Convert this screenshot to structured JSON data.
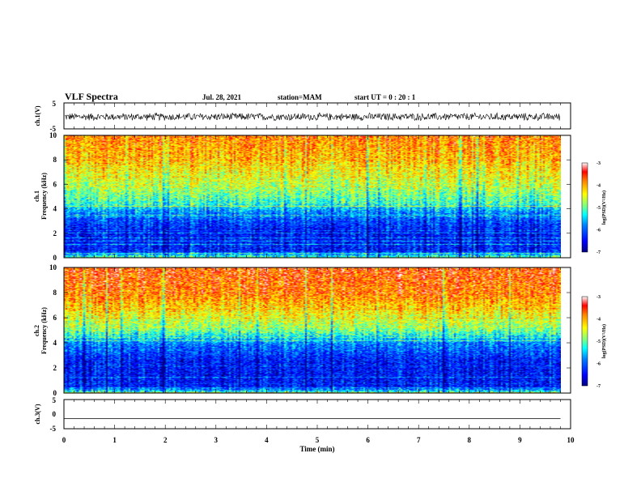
{
  "header": {
    "title": "VLF Spectra",
    "date": "Jul. 28, 2021",
    "station": "station=MAM",
    "start": "start UT =  0 : 20 : 1"
  },
  "chart_data": [
    {
      "type": "line",
      "panel": "ch1-waveform",
      "ylabel": "ch.1(V)",
      "ylim": [
        -5,
        5
      ],
      "yticks": [
        "5",
        "-5"
      ],
      "xlim": [
        0,
        10
      ],
      "description_values": "noise waveform between about -1.5 V and 1.5 V from 0 to 9.8 min"
    },
    {
      "type": "heatmap",
      "panel": "ch1-spectrogram",
      "ylabel": "ch.1\nFrequency (kHz)",
      "ylim": [
        0,
        10
      ],
      "yticks": [
        "0",
        "2",
        "4",
        "6",
        "8",
        "10"
      ],
      "xlim": [
        0,
        10
      ],
      "data_end_min": 9.8,
      "color_scale": {
        "label": "log(PSD)(V²/Hz)",
        "range": [
          -7,
          -3
        ],
        "ticks": [
          "-3",
          "-4",
          "-5",
          "-6",
          "-7"
        ]
      },
      "profile": [
        {
          "freq_khz": 0.0,
          "log_psd": -5.0
        },
        {
          "freq_khz": 0.5,
          "log_psd": -6.3
        },
        {
          "freq_khz": 2.0,
          "log_psd": -6.4
        },
        {
          "freq_khz": 3.5,
          "log_psd": -5.9
        },
        {
          "freq_khz": 4.5,
          "log_psd": -5.1
        },
        {
          "freq_khz": 6.0,
          "log_psd": -4.6
        },
        {
          "freq_khz": 8.0,
          "log_psd": -4.1
        },
        {
          "freq_khz": 10.0,
          "log_psd": -3.8
        }
      ]
    },
    {
      "type": "heatmap",
      "panel": "ch2-spectrogram",
      "ylabel": "ch.2\nFrequency (kHz)",
      "ylim": [
        0,
        10
      ],
      "yticks": [
        "0",
        "2",
        "4",
        "6",
        "8",
        "10"
      ],
      "xlim": [
        0,
        10
      ],
      "data_end_min": 9.8,
      "color_scale": {
        "label": "log(PSD)(V²/Hz)",
        "range": [
          -7,
          -3
        ],
        "ticks": [
          "-3",
          "-4",
          "-5",
          "-6",
          "-7"
        ]
      },
      "profile": [
        {
          "freq_khz": 0.0,
          "log_psd": -5.2
        },
        {
          "freq_khz": 0.5,
          "log_psd": -6.4
        },
        {
          "freq_khz": 2.5,
          "log_psd": -6.4
        },
        {
          "freq_khz": 4.0,
          "log_psd": -5.8
        },
        {
          "freq_khz": 5.0,
          "log_psd": -4.9
        },
        {
          "freq_khz": 6.5,
          "log_psd": -4.3
        },
        {
          "freq_khz": 8.0,
          "log_psd": -3.8
        },
        {
          "freq_khz": 10.0,
          "log_psd": -3.6
        }
      ]
    },
    {
      "type": "line",
      "panel": "ch3-waveform",
      "ylabel": "ch.3(V)",
      "ylim": [
        -5,
        5
      ],
      "yticks": [
        "5",
        "0",
        "-5"
      ],
      "xlim": [
        0,
        10
      ],
      "constant_value_v": -1.5
    }
  ],
  "xaxis": {
    "label": "Time (min)",
    "ticks": [
      "0",
      "1",
      "2",
      "3",
      "4",
      "5",
      "6",
      "7",
      "8",
      "9",
      "10"
    ]
  },
  "colors": {
    "frame": "#000000",
    "colormap": [
      "#00007f",
      "#0000ff",
      "#0080ff",
      "#00ffff",
      "#80ff80",
      "#ffff00",
      "#ff8000",
      "#ff0000",
      "#ffffff"
    ]
  }
}
